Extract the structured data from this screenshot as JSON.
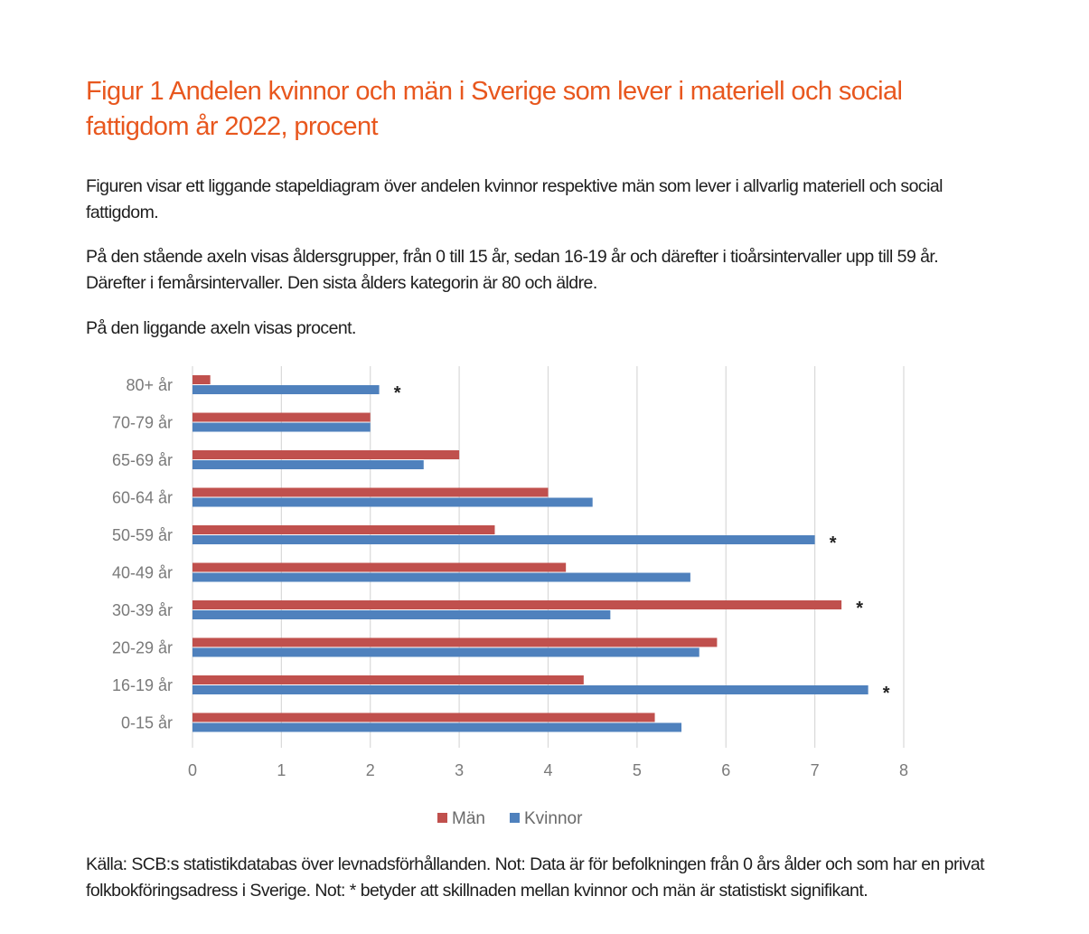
{
  "title": "Figur 1 Andelen kvinnor och män i Sverige som lever i materiell och social fattigdom år 2022, procent",
  "paragraphs": [
    "Figuren visar ett liggande stapeldiagram över andelen kvinnor respektive män som lever i allvarlig materiell och social fattigdom.",
    "På den stående axeln visas åldersgrupper, från 0 till 15 år, sedan 16-19 år och därefter i tioårsintervaller upp till 59 år. Därefter i femårsintervaller. Den sista ålders kategorin är 80 och äldre.",
    "På den liggande axeln visas procent."
  ],
  "footer": "Källa: SCB:s statistikdatabas över levnadsförhållanden. Not: Data är för befolkningen från 0 års ålder och som har en privat folkbokföringsadress i Sverige. Not: * betyder att skillnaden mellan kvinnor och män är statistiskt signifikant.",
  "chart_data": {
    "type": "bar",
    "orientation": "horizontal",
    "categories": [
      "80+ år",
      "70-79 år",
      "65-69 år",
      "60-64 år",
      "50-59 år",
      "40-49 år",
      "30-39 år",
      "20-29 år",
      "16-19 år",
      "0-15 år"
    ],
    "series": [
      {
        "name": "Män",
        "color": "#c0504d",
        "values": [
          0.2,
          2.0,
          3.0,
          4.0,
          3.4,
          4.2,
          7.3,
          5.9,
          4.4,
          5.2
        ]
      },
      {
        "name": "Kvinnor",
        "color": "#4f81bd",
        "values": [
          2.1,
          2.0,
          2.6,
          4.5,
          7.0,
          5.6,
          4.7,
          5.7,
          7.6,
          5.5
        ]
      }
    ],
    "significance_marker": "*",
    "significant": [
      {
        "category": "80+ år",
        "series": "Kvinnor"
      },
      {
        "category": "50-59 år",
        "series": "Kvinnor"
      },
      {
        "category": "30-39 år",
        "series": "Män"
      },
      {
        "category": "16-19 år",
        "series": "Kvinnor"
      }
    ],
    "xlim": [
      0,
      8
    ],
    "xticks": [
      "0",
      "1",
      "2",
      "3",
      "4",
      "5",
      "6",
      "7",
      "8"
    ],
    "grid": true,
    "legend": "bottom-center",
    "xlabel": "",
    "ylabel": ""
  }
}
